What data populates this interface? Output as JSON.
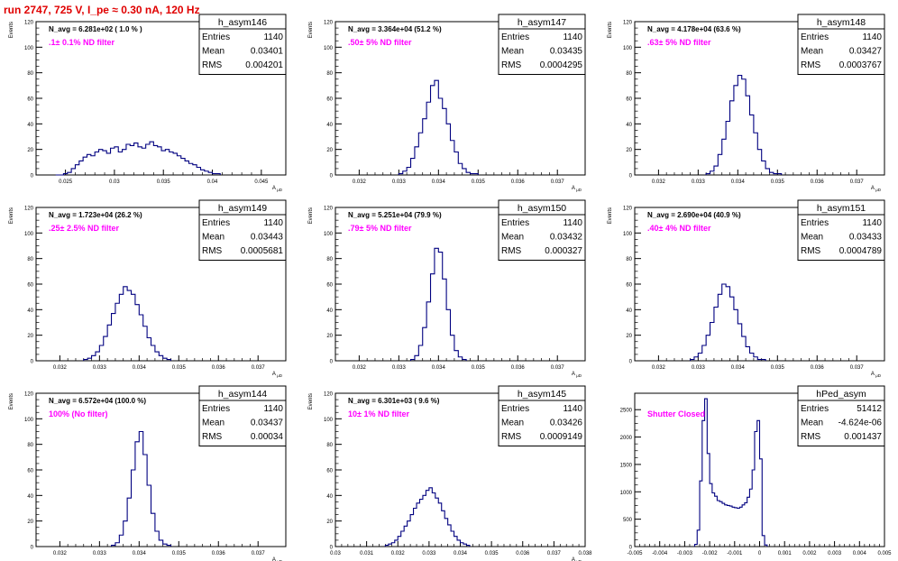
{
  "page_title": "run 2747,   725 V, I_pe ≈ 0.30 nA, 120 Hz",
  "colors": {
    "hist": "#000080",
    "annotation": "#ff00ff",
    "title": "#e00000"
  },
  "chart_data": [
    {
      "type": "histogram",
      "title": "h_asym146",
      "stats": {
        "Entries": "1140",
        "Mean": "0.03401",
        "RMS": "0.004201"
      },
      "navg": "N_avg = 6.281e+02 ( 1.0 % )",
      "filter": ".1± 0.1% ND filter",
      "ylabel": "Events",
      "xlabel": "A_μD",
      "xlim": [
        0.022,
        0.0475
      ],
      "ylim": [
        0,
        120
      ],
      "xticks": [
        0.025,
        0.03,
        0.035,
        0.04,
        0.045
      ],
      "yticks": [
        0,
        20,
        40,
        60,
        80,
        100,
        120
      ],
      "xtick_labels": [
        "0.025",
        "0.03",
        "0.035",
        "0.04",
        "0.045"
      ],
      "ytick_labels": [
        "0",
        "20",
        "40",
        "60",
        "80",
        "100",
        "120"
      ],
      "bin_start": 0.024,
      "bin_width": 0.0004,
      "values": [
        0,
        0,
        1,
        2,
        5,
        8,
        11,
        14,
        16,
        15,
        18,
        20,
        19,
        17,
        21,
        22,
        18,
        20,
        24,
        23,
        25,
        22,
        21,
        24,
        26,
        23,
        22,
        19,
        20,
        18,
        17,
        15,
        13,
        11,
        9,
        8,
        6,
        4,
        3,
        2,
        1,
        1
      ]
    },
    {
      "type": "histogram",
      "title": "h_asym147",
      "stats": {
        "Entries": "1140",
        "Mean": "0.03435",
        "RMS": "0.0004295"
      },
      "navg": "N_avg = 3.364e+04 (51.2 %)",
      "filter": ".50± 5% ND filter",
      "ylabel": "Events",
      "xlabel": "A_μD",
      "xlim": [
        0.0314,
        0.0377
      ],
      "ylim": [
        0,
        120
      ],
      "xticks": [
        0.032,
        0.033,
        0.034,
        0.035,
        0.036,
        0.037
      ],
      "yticks": [
        0,
        20,
        40,
        60,
        80,
        100,
        120
      ],
      "xtick_labels": [
        "0.032",
        "0.033",
        "0.034",
        "0.035",
        "0.036",
        "0.037"
      ],
      "ytick_labels": [
        "0",
        "20",
        "40",
        "60",
        "80",
        "100",
        "120"
      ],
      "bin_start": 0.033,
      "bin_width": 0.0001,
      "values": [
        1,
        3,
        6,
        13,
        22,
        33,
        44,
        57,
        70,
        74,
        60,
        52,
        40,
        27,
        18,
        9,
        5,
        2,
        1,
        1
      ]
    },
    {
      "type": "histogram",
      "title": "h_asym148",
      "stats": {
        "Entries": "1140",
        "Mean": "0.03427",
        "RMS": "0.0003767"
      },
      "navg": "N_avg = 4.178e+04 (63.6 %)",
      "filter": ".63± 5% ND filter",
      "ylabel": "Events",
      "xlabel": "A_μD",
      "xlim": [
        0.0314,
        0.0377
      ],
      "ylim": [
        0,
        120
      ],
      "xticks": [
        0.032,
        0.033,
        0.034,
        0.035,
        0.036,
        0.037
      ],
      "yticks": [
        0,
        20,
        40,
        60,
        80,
        100,
        120
      ],
      "xtick_labels": [
        "0.032",
        "0.033",
        "0.034",
        "0.035",
        "0.036",
        "0.037"
      ],
      "ytick_labels": [
        "0",
        "20",
        "40",
        "60",
        "80",
        "100",
        "120"
      ],
      "bin_start": 0.0332,
      "bin_width": 0.0001,
      "values": [
        1,
        3,
        7,
        16,
        28,
        42,
        58,
        70,
        78,
        75,
        62,
        47,
        33,
        20,
        11,
        5,
        2,
        1,
        1
      ]
    },
    {
      "type": "histogram",
      "title": "h_asym149",
      "stats": {
        "Entries": "1140",
        "Mean": "0.03443",
        "RMS": "0.0005681"
      },
      "navg": "N_avg = 1.723e+04 (26.2 %)",
      "filter": ".25± 2.5% ND filter",
      "ylabel": "Events",
      "xlabel": "A_μD",
      "xlim": [
        0.0314,
        0.0377
      ],
      "ylim": [
        0,
        120
      ],
      "xticks": [
        0.032,
        0.033,
        0.034,
        0.035,
        0.036,
        0.037
      ],
      "yticks": [
        0,
        20,
        40,
        60,
        80,
        100,
        120
      ],
      "xtick_labels": [
        "0.032",
        "0.033",
        "0.034",
        "0.035",
        "0.036",
        "0.037"
      ],
      "ytick_labels": [
        "0",
        "20",
        "40",
        "60",
        "80",
        "100",
        "120"
      ],
      "bin_start": 0.0326,
      "bin_width": 0.0001,
      "values": [
        1,
        2,
        4,
        7,
        12,
        19,
        28,
        37,
        45,
        52,
        58,
        55,
        52,
        44,
        36,
        27,
        18,
        12,
        7,
        4,
        2,
        1
      ]
    },
    {
      "type": "histogram",
      "title": "h_asym150",
      "stats": {
        "Entries": "1140",
        "Mean": "0.03432",
        "RMS": "0.000327"
      },
      "navg": "N_avg = 5.251e+04 (79.9 %)",
      "filter": ".79± 5% ND filter",
      "ylabel": "Events",
      "xlabel": "A_μD",
      "xlim": [
        0.0314,
        0.0377
      ],
      "ylim": [
        0,
        120
      ],
      "xticks": [
        0.032,
        0.033,
        0.034,
        0.035,
        0.036,
        0.037
      ],
      "yticks": [
        0,
        20,
        40,
        60,
        80,
        100,
        120
      ],
      "xtick_labels": [
        "0.032",
        "0.033",
        "0.034",
        "0.035",
        "0.036",
        "0.037"
      ],
      "ytick_labels": [
        "0",
        "20",
        "40",
        "60",
        "80",
        "100",
        "120"
      ],
      "bin_start": 0.0333,
      "bin_width": 0.0001,
      "values": [
        1,
        4,
        12,
        26,
        46,
        68,
        88,
        85,
        64,
        40,
        20,
        8,
        3,
        1
      ]
    },
    {
      "type": "histogram",
      "title": "h_asym151",
      "stats": {
        "Entries": "1140",
        "Mean": "0.03433",
        "RMS": "0.0004789"
      },
      "navg": "N_avg = 2.690e+04 (40.9 %)",
      "filter": ".40± 4% ND filter",
      "ylabel": "Events",
      "xlabel": "A_μD",
      "xlim": [
        0.0314,
        0.0377
      ],
      "ylim": [
        0,
        120
      ],
      "xticks": [
        0.032,
        0.033,
        0.034,
        0.035,
        0.036,
        0.037
      ],
      "yticks": [
        0,
        20,
        40,
        60,
        80,
        100,
        120
      ],
      "xtick_labels": [
        "0.032",
        "0.033",
        "0.034",
        "0.035",
        "0.036",
        "0.037"
      ],
      "ytick_labels": [
        "0",
        "20",
        "40",
        "60",
        "80",
        "100",
        "120"
      ],
      "bin_start": 0.0328,
      "bin_width": 0.0001,
      "values": [
        1,
        3,
        6,
        12,
        20,
        30,
        42,
        52,
        60,
        58,
        50,
        40,
        29,
        19,
        11,
        6,
        3,
        1,
        1
      ]
    },
    {
      "type": "histogram",
      "title": "h_asym144",
      "stats": {
        "Entries": "1140",
        "Mean": "0.03437",
        "RMS": "0.00034"
      },
      "navg": "N_avg = 6.572e+04 (100.0 %)",
      "filter": "100% (No filter)",
      "ylabel": "Events",
      "xlabel": "A_μD",
      "xlim": [
        0.0314,
        0.0377
      ],
      "ylim": [
        0,
        120
      ],
      "xticks": [
        0.032,
        0.033,
        0.034,
        0.035,
        0.036,
        0.037
      ],
      "yticks": [
        0,
        20,
        40,
        60,
        80,
        100,
        120
      ],
      "xtick_labels": [
        "0.032",
        "0.033",
        "0.034",
        "0.035",
        "0.036",
        "0.037"
      ],
      "ytick_labels": [
        "0",
        "20",
        "40",
        "60",
        "80",
        "100",
        "120"
      ],
      "bin_start": 0.0333,
      "bin_width": 0.0001,
      "values": [
        1,
        3,
        9,
        20,
        38,
        60,
        82,
        90,
        72,
        48,
        26,
        12,
        5,
        2,
        1
      ]
    },
    {
      "type": "histogram",
      "title": "h_asym145",
      "stats": {
        "Entries": "1140",
        "Mean": "0.03426",
        "RMS": "0.0009149"
      },
      "navg": "N_avg = 6.301e+03 ( 9.6 %)",
      "filter": "10± 1% ND filter",
      "ylabel": "Events",
      "xlabel": "A_μD",
      "xlim": [
        0.03,
        0.038
      ],
      "ylim": [
        0,
        120
      ],
      "xticks": [
        0.03,
        0.031,
        0.032,
        0.033,
        0.034,
        0.035,
        0.036,
        0.037,
        0.038
      ],
      "yticks": [
        0,
        20,
        40,
        60,
        80,
        100,
        120
      ],
      "xtick_labels": [
        "0.03",
        "0.031",
        "0.032",
        "0.033",
        "0.034",
        "0.035",
        "0.036",
        "0.037",
        "0.038"
      ],
      "ytick_labels": [
        "0",
        "20",
        "40",
        "60",
        "80",
        "100",
        "120"
      ],
      "bin_start": 0.0316,
      "bin_width": 0.0001,
      "values": [
        1,
        2,
        3,
        5,
        8,
        12,
        16,
        20,
        25,
        30,
        34,
        37,
        40,
        44,
        46,
        42,
        38,
        34,
        28,
        22,
        17,
        12,
        8,
        5,
        3,
        2,
        1
      ]
    },
    {
      "type": "histogram",
      "title": "hPed_asym",
      "stats": {
        "Entries": "51412",
        "Mean": "-4.624e-06",
        "RMS": "0.001437"
      },
      "navg": "",
      "filter": "Shutter Closed",
      "ylabel": "",
      "xlabel": "",
      "xlim": [
        -0.005,
        0.005
      ],
      "ylim": [
        0,
        2800
      ],
      "xticks": [
        -0.005,
        -0.004,
        -0.003,
        -0.002,
        -0.001,
        0,
        0.001,
        0.002,
        0.003,
        0.004,
        0.005
      ],
      "yticks": [
        0,
        500,
        1000,
        1500,
        2000,
        2500
      ],
      "xtick_labels": [
        "-0.005",
        "-0.004",
        "-0.003",
        "-0.002",
        "-0.001",
        "0",
        "0.001",
        "0.002",
        "0.003",
        "0.004",
        "0.005"
      ],
      "ytick_labels": [
        "0",
        "500",
        "1000",
        "1500",
        "2000",
        "2500"
      ],
      "bin_start": -0.0026,
      "bin_width": 0.0001,
      "values": [
        40,
        300,
        1200,
        2300,
        2700,
        1700,
        1150,
        980,
        920,
        840,
        820,
        790,
        760,
        750,
        740,
        720,
        710,
        700,
        720,
        760,
        800,
        900,
        1050,
        1400,
        2100,
        2300,
        1600,
        200,
        30
      ]
    }
  ]
}
